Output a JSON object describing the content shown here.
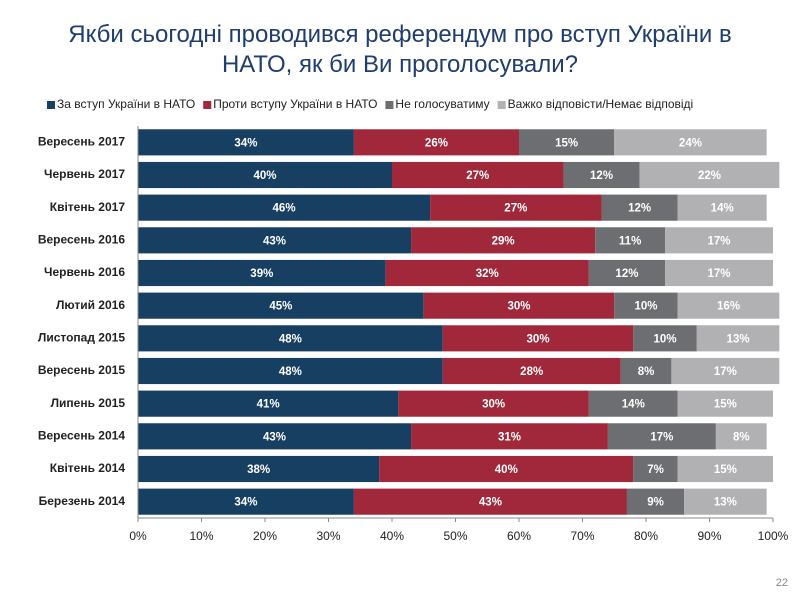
{
  "chart_data": {
    "type": "stacked-barh",
    "title": "Якби сьогодні проводився референдум про вступ України в НАТО, як би Ви проголосували?",
    "categories": [
      "Вересень 2017",
      "Червень 2017",
      "Квітень 2017",
      "Вересень 2016",
      "Червень 2016",
      "Лютий 2016",
      "Листопад 2015",
      "Вересень 2015",
      "Липень 2015",
      "Вересень 2014",
      "Квітень 2014",
      "Березень 2014"
    ],
    "series": [
      {
        "name": "За вступ України в НАТО",
        "color": "#173f62",
        "values": [
          34,
          40,
          46,
          43,
          39,
          45,
          48,
          48,
          41,
          43,
          38,
          34
        ],
        "value_labels": [
          "34%",
          "40%",
          "46%",
          "43%",
          "39%",
          "45%",
          "48%",
          "48%",
          "41%",
          "43%",
          "38%",
          "34%"
        ]
      },
      {
        "name": "Проти вступу України в НАТО",
        "color": "#a0283a",
        "values": [
          26,
          27,
          27,
          29,
          32,
          30,
          30,
          28,
          30,
          31,
          40,
          43
        ],
        "value_labels": [
          "26%",
          "27%",
          "27%",
          "29%",
          "32%",
          "30%",
          "30%",
          "28%",
          "30%",
          "31%",
          "40%",
          "43%"
        ]
      },
      {
        "name": "Не голосуватиму",
        "color": "#6d6e71",
        "values": [
          15,
          12,
          12,
          11,
          12,
          10,
          10,
          8,
          14,
          17,
          7,
          9
        ],
        "value_labels": [
          "15%",
          "12%",
          "12%",
          "11%",
          "12%",
          "10%",
          "10%",
          "8%",
          "14%",
          "17%",
          "7%",
          "9%"
        ]
      },
      {
        "name": "Важко відповісти/Немає відповіді",
        "color": "#b1b1b3",
        "values": [
          24,
          22,
          14,
          17,
          17,
          16,
          13,
          17,
          15,
          8,
          15,
          13
        ],
        "value_labels": [
          "24%",
          "22%",
          "14%",
          "17%",
          "17%",
          "16%",
          "13%",
          "17%",
          "15%",
          "8%",
          "15%",
          "13%"
        ]
      }
    ],
    "xlim": [
      0,
      100
    ],
    "xticks": [
      {
        "value": 0,
        "label": "0%"
      },
      {
        "value": 10,
        "label": "10%"
      },
      {
        "value": 20,
        "label": "20%"
      },
      {
        "value": 30,
        "label": "30%"
      },
      {
        "value": 40,
        "label": "40%"
      },
      {
        "value": 50,
        "label": "50%"
      },
      {
        "value": 60,
        "label": "60%"
      },
      {
        "value": 70,
        "label": "70%"
      },
      {
        "value": 80,
        "label": "80%"
      },
      {
        "value": 90,
        "label": "90%"
      },
      {
        "value": 100,
        "label": "100%"
      }
    ],
    "grid": false,
    "legend": "top"
  },
  "page_number": "22"
}
